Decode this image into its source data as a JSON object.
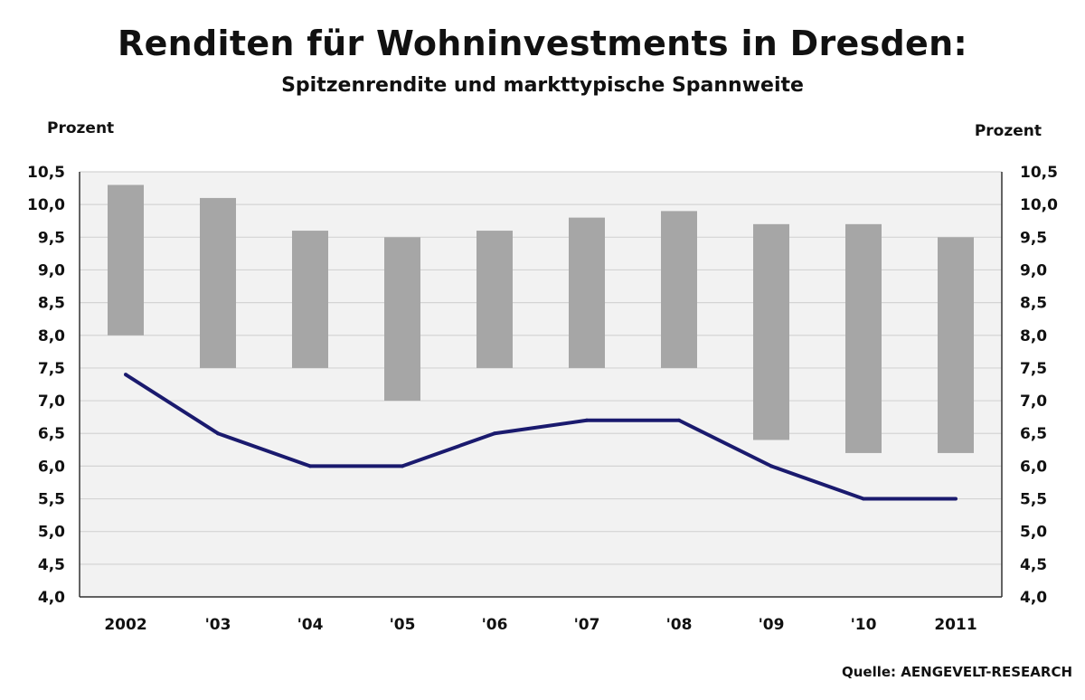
{
  "chart_data": {
    "type": "bar",
    "title": "Renditen für Wohninvestments in Dresden:",
    "subtitle": "Spitzenrendite und markttypische Spannweite",
    "ylabel_left": "Prozent",
    "ylabel_right": "Prozent",
    "source": "Quelle: AENGEVELT-RESEARCH",
    "categories": [
      "2002",
      "'03",
      "'04",
      "'05",
      "'06",
      "'07",
      "'08",
      "'09",
      "'10",
      "2011"
    ],
    "ylim": [
      4.0,
      10.5
    ],
    "yticks": [
      "4,0",
      "4,5",
      "5,0",
      "5,5",
      "6,0",
      "6,5",
      "7,0",
      "7,5",
      "8,0",
      "8,5",
      "9,0",
      "9,5",
      "10,0",
      "10,5"
    ],
    "grid": true,
    "series": [
      {
        "kind": "range-bar",
        "color": "#a6a6a6",
        "low": [
          8.0,
          7.5,
          7.5,
          7.0,
          7.5,
          7.5,
          7.5,
          6.4,
          6.2,
          6.2
        ],
        "high": [
          10.3,
          10.1,
          9.6,
          9.5,
          9.6,
          9.8,
          9.9,
          9.7,
          9.7,
          9.5
        ]
      },
      {
        "kind": "line",
        "color": "#1a1a6e",
        "values": [
          7.4,
          6.5,
          6.0,
          6.0,
          6.5,
          6.7,
          6.7,
          6.0,
          5.5,
          5.5
        ]
      }
    ]
  }
}
